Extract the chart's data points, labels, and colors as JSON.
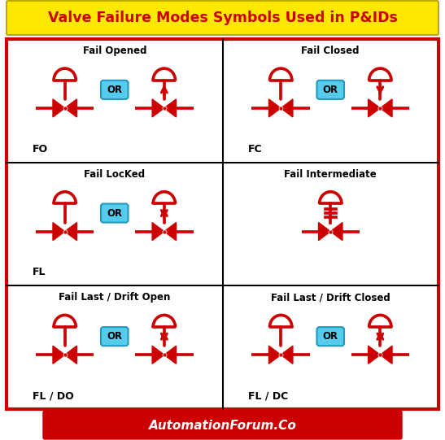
{
  "title": "Valve Failure Modes Symbols Used in P&IDs",
  "title_bg": "#FFE800",
  "title_color": "#CC0000",
  "bg_color": "#FFFFFF",
  "border_color": "#CC0000",
  "valve_color": "#CC0000",
  "or_bg": "#55CCEE",
  "or_border": "#2299BB",
  "label_color": "#000000",
  "footer_bg": "#CC0000",
  "footer_text": "#FFFFFF",
  "footer_label": "AutomationForum.Co",
  "cells": [
    {
      "title": "Fail Opened",
      "code": "FO",
      "row": 0,
      "col": 0,
      "arrow": "up",
      "has_or": true,
      "intermediate": false
    },
    {
      "title": "Fail Closed",
      "code": "FC",
      "row": 0,
      "col": 1,
      "arrow": "down",
      "has_or": true,
      "intermediate": false
    },
    {
      "title": "Fail LocKed",
      "code": "FL",
      "row": 1,
      "col": 0,
      "arrow": "both",
      "has_or": true,
      "intermediate": false
    },
    {
      "title": "Fail Intermediate",
      "code": "",
      "row": 1,
      "col": 1,
      "arrow": "none",
      "has_or": false,
      "intermediate": true
    },
    {
      "title": "Fail Last / Drift Open",
      "code": "FL / DO",
      "row": 2,
      "col": 0,
      "arrow": "both",
      "has_or": true,
      "intermediate": false
    },
    {
      "title": "Fail Last / Drift Closed",
      "code": "FL / DC",
      "row": 2,
      "col": 1,
      "arrow": "both",
      "has_or": true,
      "intermediate": false
    }
  ]
}
